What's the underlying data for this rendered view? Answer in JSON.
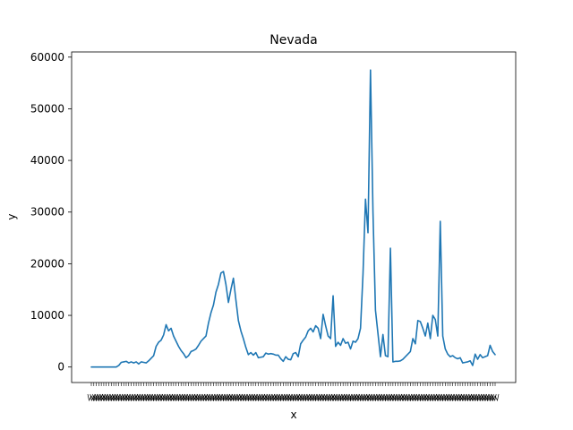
{
  "chart_data": {
    "type": "line",
    "title": "Nevada",
    "xlabel": "x",
    "ylabel": "y",
    "ylim": [
      -3000,
      61000
    ],
    "yticks": [
      0,
      10000,
      20000,
      30000,
      40000,
      50000,
      60000
    ],
    "ytick_labels": [
      "0",
      "10000",
      "20000",
      "30000",
      "40000",
      "50000",
      "60000"
    ],
    "grid": false,
    "color": "#1f77b4",
    "series": [
      {
        "values": [
          0,
          0,
          0,
          0,
          0,
          0,
          0,
          0,
          0,
          0,
          0,
          300,
          900,
          1000,
          1100,
          800,
          1000,
          800,
          1000,
          600,
          1000,
          900,
          800,
          1200,
          1700,
          2200,
          4000,
          4800,
          5200,
          6200,
          8200,
          7000,
          7500,
          6000,
          5000,
          4000,
          3200,
          2600,
          1800,
          2200,
          3000,
          3200,
          3500,
          4200,
          5000,
          5500,
          6000,
          8500,
          10500,
          12000,
          14500,
          16000,
          18200,
          18500,
          16000,
          12500,
          15000,
          17200,
          13000,
          9000,
          7000,
          5500,
          3800,
          2400,
          2800,
          2300,
          2800,
          1800,
          1900,
          2000,
          2700,
          2500,
          2600,
          2500,
          2300,
          2300,
          1600,
          1100,
          2000,
          1500,
          1400,
          2600,
          2800,
          2000,
          4500,
          5200,
          5800,
          7000,
          7500,
          6800,
          8000,
          7500,
          5500,
          10200,
          8000,
          6000,
          5500,
          13800,
          4000,
          4800,
          4200,
          5500,
          4600,
          4800,
          3500,
          5000,
          4800,
          5500,
          7500,
          18000,
          32500,
          26000,
          57500,
          30000,
          11000,
          6500,
          2000,
          6300,
          2200,
          2000,
          23000,
          1000,
          1100,
          1100,
          1200,
          1500,
          2000,
          2500,
          3000,
          5500,
          4500,
          9000,
          8800,
          7500,
          6000,
          8500,
          5500,
          10000,
          9200,
          6000,
          28200,
          6000,
          3500,
          2500,
          2000,
          2200,
          1800,
          1600,
          1800,
          800,
          900,
          1000,
          1200,
          300,
          2500,
          1500,
          2400,
          1800,
          2000,
          2200,
          4200,
          3000,
          2400
        ]
      }
    ]
  }
}
